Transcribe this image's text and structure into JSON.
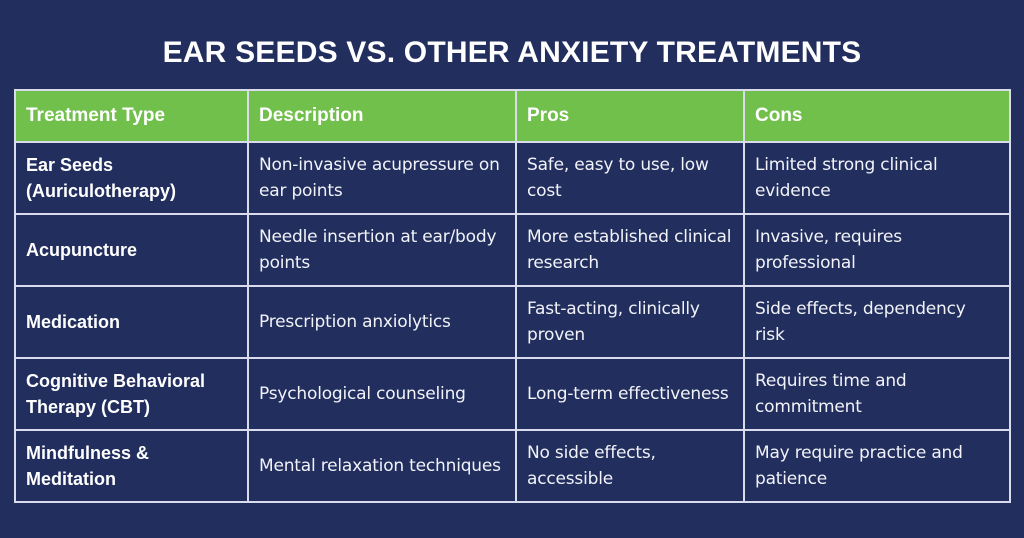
{
  "title": "EAR SEEDS VS. OTHER ANXIETY TREATMENTS",
  "colors": {
    "background": "#212e5e",
    "header_bg": "#72c04c",
    "border": "#d9dcea",
    "text": "#ffffff"
  },
  "table": {
    "headers": [
      "Treatment Type",
      "Description",
      "Pros",
      "Cons"
    ],
    "rows": [
      {
        "type": "Ear Seeds (Auriculotherapy)",
        "description": "Non-invasive acupressure on ear points",
        "pros": "Safe, easy to use, low cost",
        "cons": "Limited strong clinical evidence"
      },
      {
        "type": "Acupuncture",
        "description": "Needle insertion at ear/body points",
        "pros": "More established clinical research",
        "cons": "Invasive, requires professional"
      },
      {
        "type": "Medication",
        "description": "Prescription anxiolytics",
        "pros": "Fast-acting, clinically proven",
        "cons": "Side effects, dependency risk"
      },
      {
        "type": "Cognitive Behavioral Therapy (CBT)",
        "description": "Psychological counseling",
        "pros": "Long-term effectiveness",
        "cons": "Requires time and commitment"
      },
      {
        "type": "Mindfulness & Meditation",
        "description": "Mental relaxation techniques",
        "pros": "No side effects, accessible",
        "cons": "May require practice and patience"
      }
    ]
  }
}
